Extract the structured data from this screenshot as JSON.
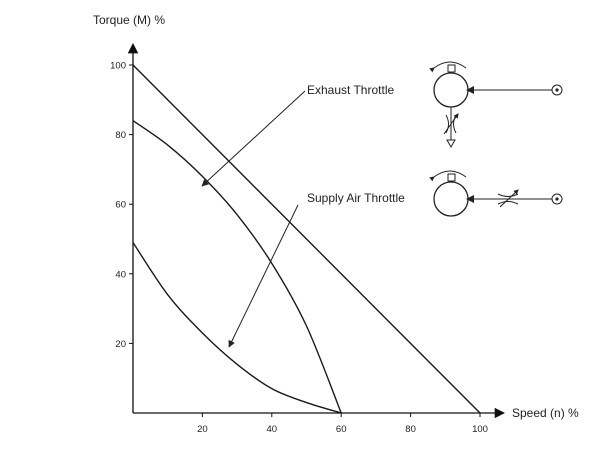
{
  "chart_data": {
    "type": "line",
    "title": "",
    "xlabel": "Speed (n) %",
    "ylabel": "Torque (M) %",
    "xlim": [
      0,
      100
    ],
    "ylim": [
      0,
      100
    ],
    "x_ticks": [
      20,
      40,
      60,
      80,
      100
    ],
    "y_ticks": [
      20,
      40,
      60,
      80,
      100
    ],
    "grid": false,
    "series": [
      {
        "name": "",
        "x": [
          0,
          100
        ],
        "y": [
          100,
          0
        ]
      },
      {
        "name": "",
        "x": [
          0,
          10,
          20,
          30,
          40,
          50,
          60
        ],
        "y": [
          84,
          77,
          68,
          57,
          43,
          25,
          0
        ]
      },
      {
        "name": "",
        "x": [
          0,
          10,
          20,
          30,
          40,
          50,
          60
        ],
        "y": [
          49,
          34,
          23,
          14,
          7,
          3,
          0
        ]
      }
    ],
    "annotations": [
      {
        "text": "Exhaust Throttle",
        "arrow_to": {
          "x": 20,
          "y": 65
        }
      },
      {
        "text": "Supply Air Throttle",
        "arrow_to": {
          "x": 28,
          "y": 19
        }
      }
    ]
  }
}
